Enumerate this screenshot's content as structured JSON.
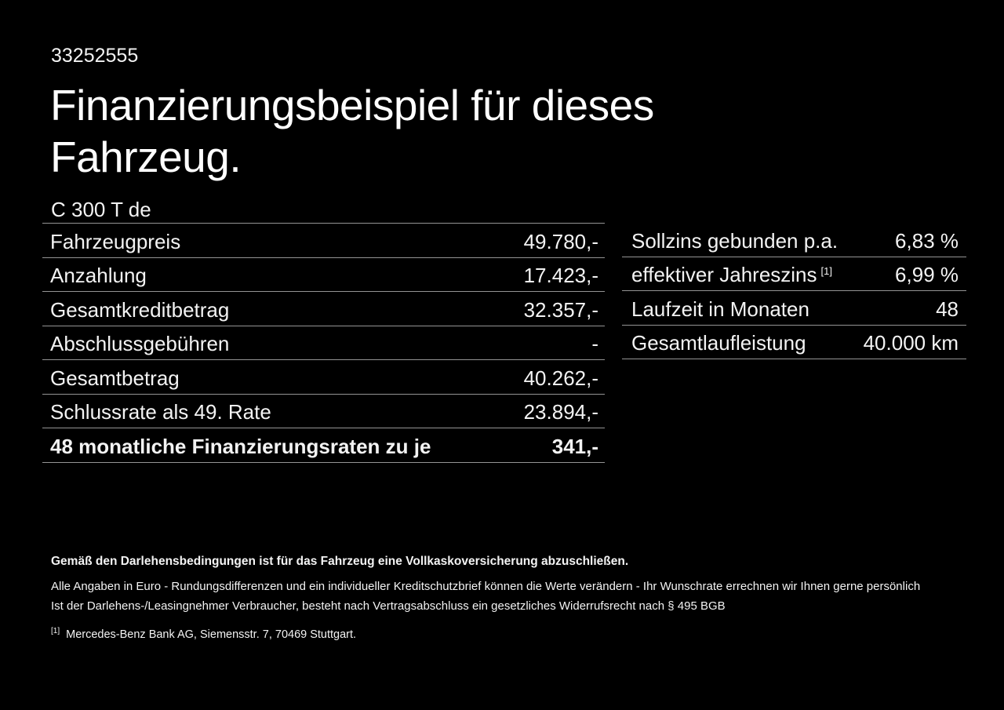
{
  "colors": {
    "background": "#000000",
    "text": "#f3f3f3",
    "heading": "#ffffff",
    "divider": "#949494"
  },
  "document_id": "33252555",
  "title": {
    "line1": "Finanzierungsbeispiel für dieses",
    "line2": "Fahrzeug."
  },
  "vehicle_model": "C 300 T de",
  "finance_table": {
    "rows": [
      {
        "label": "Fahrzeugpreis",
        "value": "49.780,-"
      },
      {
        "label": "Anzahlung",
        "value": "17.423,-"
      },
      {
        "label": "Gesamtkreditbetrag",
        "value": "32.357,-"
      },
      {
        "label": "Abschlussgebühren",
        "value": "-"
      },
      {
        "label": "Gesamtbetrag",
        "value": "40.262,-"
      },
      {
        "label": "Schlussrate als 49. Rate",
        "value": "23.894,-"
      },
      {
        "label": "48 monatliche Finanzierungsraten zu je",
        "value": "341,-"
      }
    ]
  },
  "conditions_table": {
    "rows": [
      {
        "label": "Sollzins gebunden p.a.",
        "sup": "",
        "value": "6,83 %"
      },
      {
        "label": "effektiver Jahreszins",
        "sup": "[1]",
        "value": "6,99 %"
      },
      {
        "label": "Laufzeit in Monaten",
        "sup": "",
        "value": "48"
      },
      {
        "label": "Gesamtlaufleistung",
        "sup": "",
        "value": "40.000 km"
      }
    ]
  },
  "footer": {
    "bold_note": "Gemäß den Darlehensbedingungen ist für das Fahrzeug eine Vollkaskoversicherung abzuschließen.",
    "note_line1": "Alle Angaben in Euro - Rundungsdifferenzen und ein individueller Kreditschutzbrief können die Werte verändern - Ihr Wunschrate errechnen wir Ihnen gerne persönlich",
    "note_line2": "Ist der Darlehens-/Leasingnehmer Verbraucher, besteht nach Vertragsabschluss ein gesetzliches Widerrufsrecht nach § 495 BGB",
    "footnote_marker": "[1]",
    "footnote_text": "Mercedes-Benz Bank AG, Siemensstr. 7, 70469 Stuttgart."
  }
}
